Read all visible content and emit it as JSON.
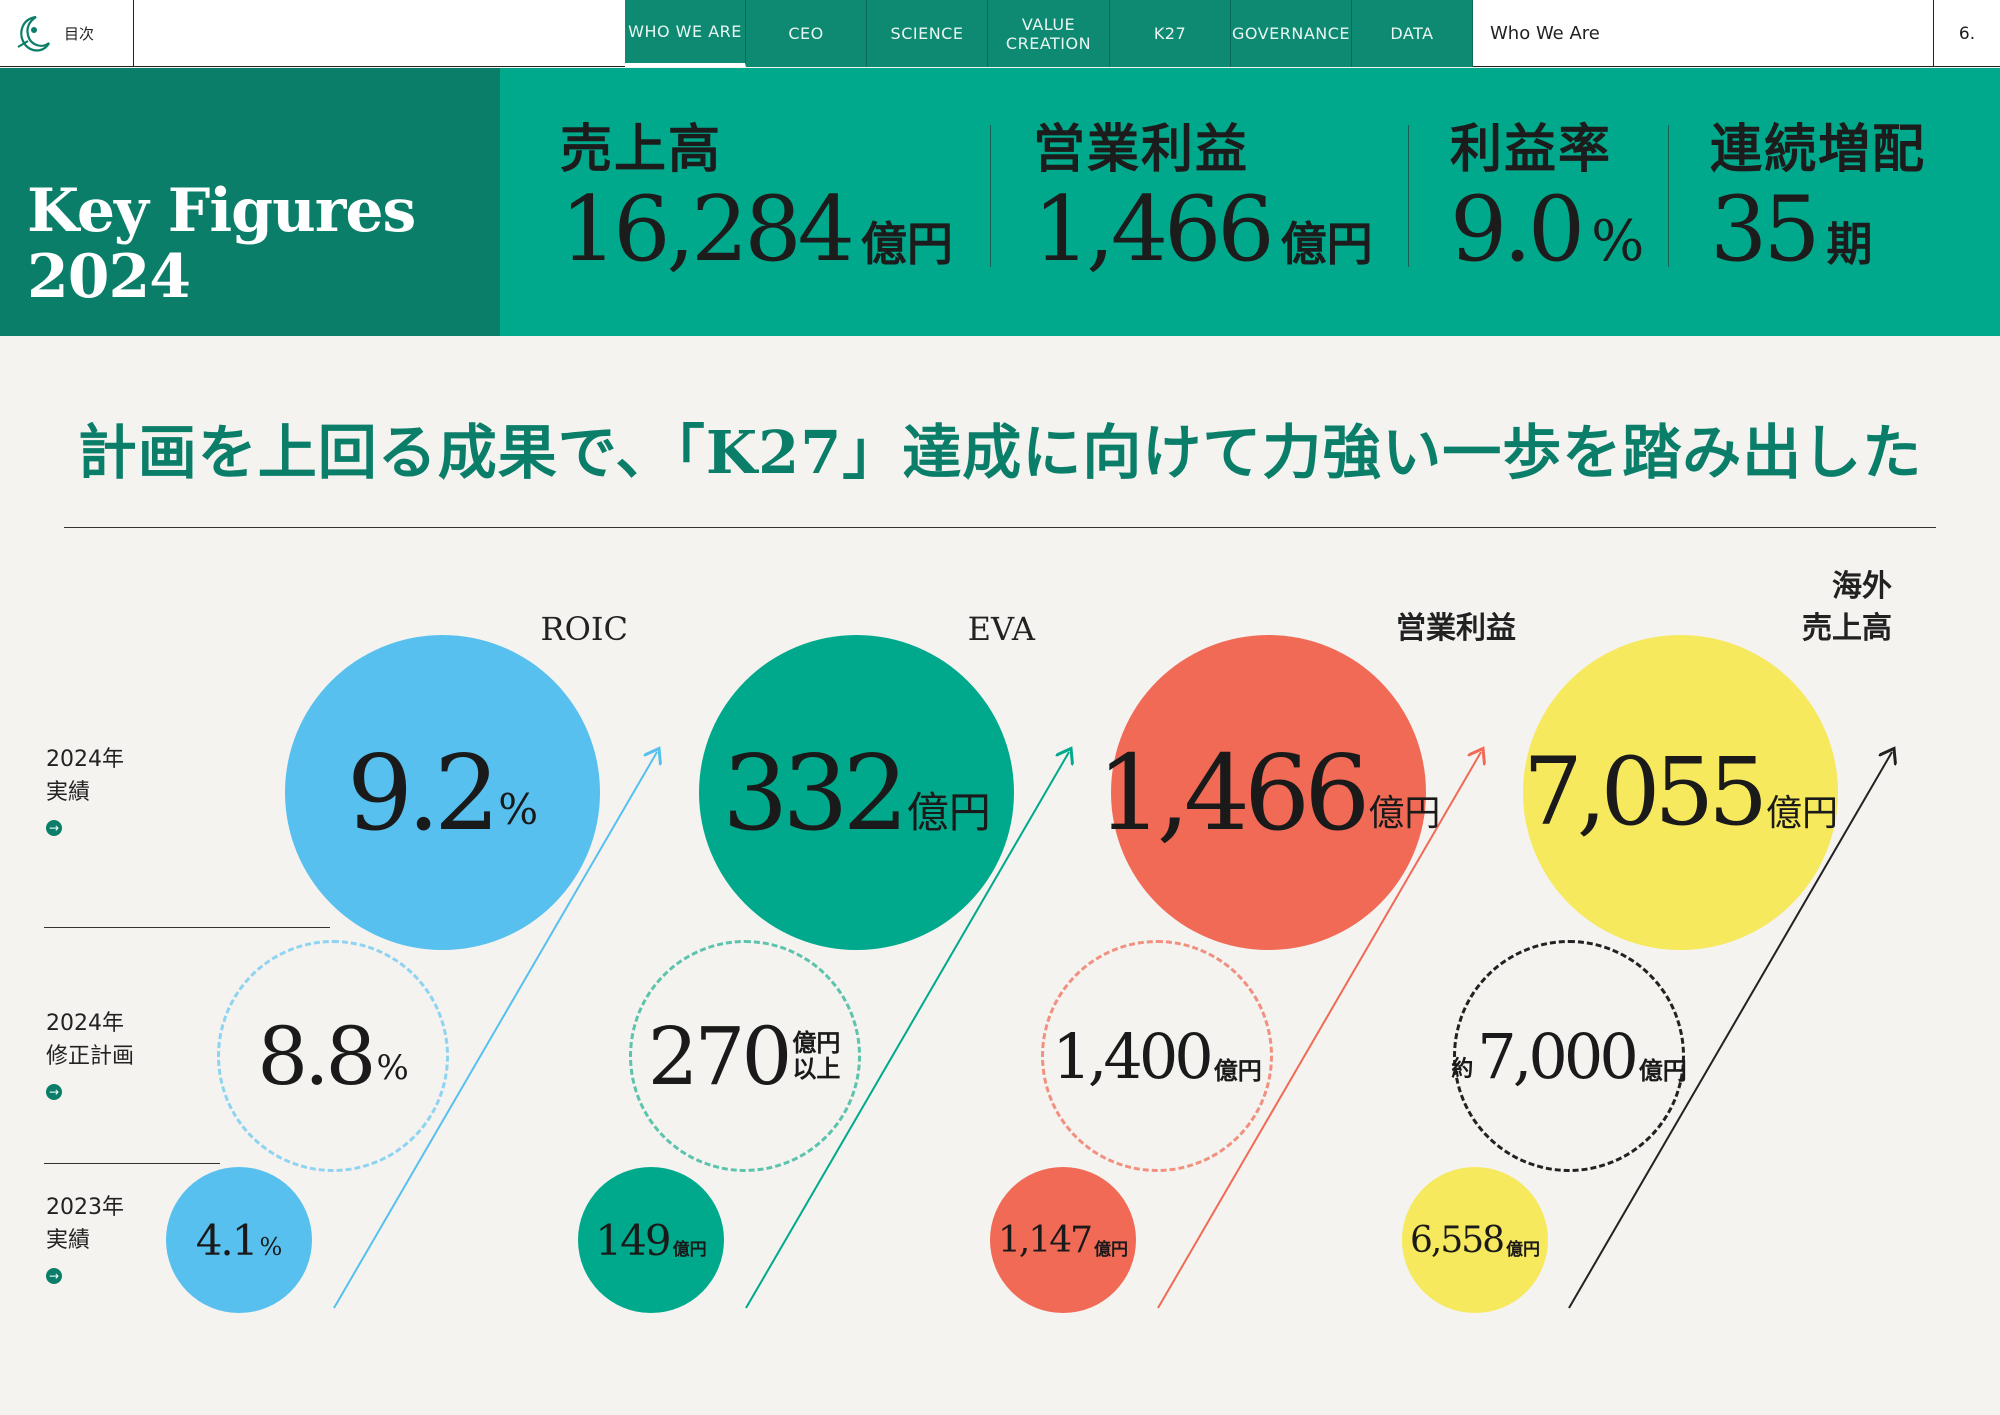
{
  "nav": {
    "toc_label": "目次",
    "tabs": [
      {
        "label": "WHO WE ARE",
        "active": true
      },
      {
        "label": "CEO"
      },
      {
        "label": "SCIENCE"
      },
      {
        "label": "VALUE CREATION"
      },
      {
        "label": "K27"
      },
      {
        "label": "GOVERNANCE"
      },
      {
        "label": "DATA"
      }
    ],
    "section_name": "Who We Are",
    "page_number": "6."
  },
  "header": {
    "title_line1": "Key Figures",
    "title_line2": "2024",
    "metrics": [
      {
        "label": "売上高",
        "value": "16,284",
        "unit": "億円"
      },
      {
        "label": "営業利益",
        "value": "1,466",
        "unit": "億円"
      },
      {
        "label": "利益率",
        "value": "9.0",
        "unit": "%"
      },
      {
        "label": "連続増配",
        "value": "35",
        "unit": "期"
      }
    ]
  },
  "headline": "計画を上回る成果で、「K27」達成に向けて力強い一歩を踏み出した",
  "rows": [
    {
      "line1": "2024年",
      "line2": "実績"
    },
    {
      "line1": "2024年",
      "line2": "修正計画"
    },
    {
      "line1": "2023年",
      "line2": "実績"
    }
  ],
  "columns": [
    {
      "title": "ROIC",
      "color": "#57c0ee",
      "actual_2024": {
        "value": "9.2",
        "unit": "%"
      },
      "plan_2024": {
        "value": "8.8",
        "unit": "%"
      },
      "actual_2023": {
        "value": "4.1",
        "unit": "%"
      }
    },
    {
      "title": "EVA",
      "color": "#00a98c",
      "actual_2024": {
        "value": "332",
        "unit": "億円"
      },
      "plan_2024": {
        "value": "270",
        "unit": "億円以上"
      },
      "actual_2023": {
        "value": "149",
        "unit": "億円"
      }
    },
    {
      "title": "営業利益",
      "color": "#f06a56",
      "actual_2024": {
        "value": "1,466",
        "unit": "億円"
      },
      "plan_2024": {
        "value": "1,400",
        "unit": "億円"
      },
      "actual_2023": {
        "value": "1,147",
        "unit": "億円"
      }
    },
    {
      "title": "海外売上高",
      "title_line1": "海外",
      "title_line2": "売上高",
      "color": "#f7e95d",
      "actual_2024": {
        "value": "7,055",
        "unit": "億円"
      },
      "plan_2024": {
        "prefix": "約",
        "value": "7,000",
        "unit": "億円"
      },
      "actual_2023": {
        "value": "6,558",
        "unit": "億円"
      }
    }
  ]
}
